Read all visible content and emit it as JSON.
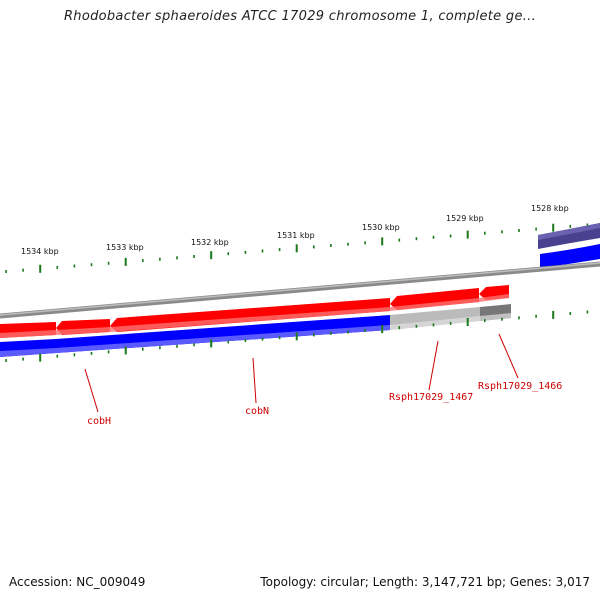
{
  "title": "Rhodobacter sphaeroides ATCC 17029 chromosome 1, complete ge...",
  "accession_label": "Accession: NC_009049",
  "summary_label": "Topology: circular; Length: 3,147,721 bp; Genes: 3,017",
  "colors": {
    "backbone": "#888888",
    "gene_forward": "#ff0000",
    "cds_blue": "#0000ff",
    "pseudo_light": "#bbbbbb",
    "pseudo_dark": "#777777",
    "selected": "#4a4090",
    "tick": "#1a7a1a",
    "label": "#cc0000"
  },
  "ticks": [
    {
      "label": "1534 kbp"
    },
    {
      "label": "1533 kbp"
    },
    {
      "label": "1532 kbp"
    },
    {
      "label": "1531 kbp"
    },
    {
      "label": "1530 kbp"
    },
    {
      "label": "1529 kbp"
    },
    {
      "label": "1528 kbp"
    }
  ],
  "genes": [
    {
      "name": "cobH"
    },
    {
      "name": "cobN"
    },
    {
      "name": "Rsph17029_1467"
    },
    {
      "name": "Rsph17029_1466"
    }
  ]
}
